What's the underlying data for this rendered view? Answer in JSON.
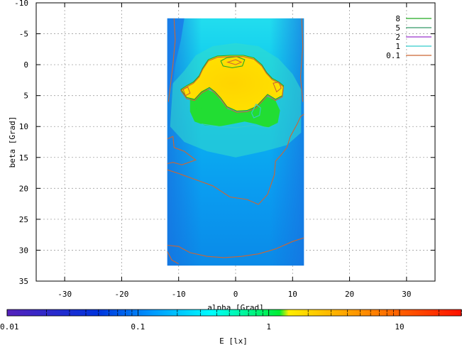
{
  "chart_data": {
    "type": "heatmap",
    "title": "",
    "xlabel": "alpha [Grad]",
    "ylabel": "beta [Grad]",
    "xlim": [
      -35,
      35
    ],
    "ylim": [
      35,
      -10
    ],
    "y_inverted": true,
    "xticks": [
      -30,
      -20,
      -10,
      0,
      10,
      20,
      30
    ],
    "yticks": [
      -10,
      -5,
      0,
      5,
      10,
      15,
      20,
      25,
      30,
      35
    ],
    "grid": true,
    "data_extent": {
      "alpha": [
        -12,
        12
      ],
      "beta": [
        -7.5,
        32.5
      ]
    },
    "contour_levels": [
      {
        "name": "8",
        "value": 8,
        "color": "#22aa22"
      },
      {
        "name": "5",
        "value": 5,
        "color": "#339966"
      },
      {
        "name": "2",
        "value": 2,
        "color": "#9933cc"
      },
      {
        "name": "1",
        "value": 1,
        "color": "#33cccc"
      },
      {
        "name": "0.1",
        "value": 0.1,
        "color": "#cc6633"
      }
    ],
    "legend_position": "top-right",
    "colorbar": {
      "label": "E [lx]",
      "scale": "log",
      "range": [
        0.01,
        30
      ],
      "ticks": [
        {
          "label": "0.01",
          "value": 0.01
        },
        {
          "label": "0.1",
          "value": 0.1
        },
        {
          "label": "1",
          "value": 1
        },
        {
          "label": "10",
          "value": 10
        }
      ],
      "colors": [
        "#5522bb",
        "#0033dd",
        "#0099ff",
        "#00ffff",
        "#00ee33",
        "#ffee00",
        "#ff1100"
      ]
    }
  }
}
